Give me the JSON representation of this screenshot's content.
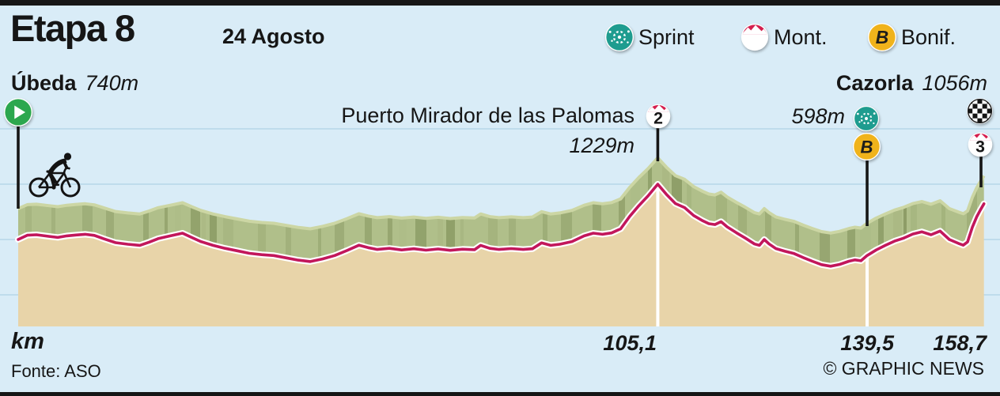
{
  "header": {
    "title": "Etapa 8",
    "date": "24 Agosto"
  },
  "legend": {
    "sprint": "Sprint",
    "mont": "Mont.",
    "bonif": "Bonif."
  },
  "start": {
    "name": "Úbeda",
    "elev": "740m"
  },
  "finish": {
    "name": "Cazorla",
    "elev": "1056m"
  },
  "climb": {
    "name": "Puerto Mirador de las Palomas",
    "elev": "1229m",
    "category": "2"
  },
  "sprint_point": {
    "elev": "598m",
    "bonus_letter": "B"
  },
  "finish_point": {
    "category": "3"
  },
  "axis": {
    "label": "km",
    "tick1": "105,1",
    "tick2": "139,5",
    "tick3": "158,7"
  },
  "footer": {
    "source": "Fonte: ASO",
    "credit": "© GRAPHIC NEWS"
  },
  "chart_data": {
    "type": "area",
    "title": "Etapa 8 — elevation profile",
    "xlabel": "km",
    "x_range": [
      0,
      158.7
    ],
    "x_ticks": [
      105.1,
      139.5,
      158.7
    ],
    "elevation_range_m": [
      500,
      1229
    ],
    "grid": true,
    "colors": {
      "background": "#d9ecf7",
      "gridline": "#bfdcec",
      "road_line": "#c2175b",
      "road_halo": "#ffffff",
      "terrain_fill": "#e8d4a9",
      "band_fill": "#b0bf8a",
      "band_highlight": "#ccd6a4",
      "band_shade": "#46581f",
      "stick": "#161616",
      "accent_teal": "#1e9c8f",
      "accent_yellow": "#f0b31b",
      "accent_red": "#d41f4e",
      "accent_green": "#2ca74e"
    },
    "markers": [
      {
        "km": 0,
        "label": "Úbeda",
        "elev_m": 740,
        "type": "start"
      },
      {
        "km": 105.1,
        "label": "Puerto Mirador de las Palomas",
        "elev_m": 1229,
        "type": "climb-cat-2"
      },
      {
        "km": 139.5,
        "label": "Sprint / Bonificación",
        "elev_m": 598,
        "type": "sprint-bonif"
      },
      {
        "km": 158.7,
        "label": "Cazorla",
        "elev_m": 1056,
        "type": "finish-cat-3"
      }
    ],
    "vertical_lines": [
      {
        "km": 105.1,
        "elev_m": 1229
      },
      {
        "km": 139.5,
        "elev_m": 598
      }
    ],
    "points_km_elev": [
      [
        0,
        740
      ],
      [
        1.5,
        778
      ],
      [
        3,
        782
      ],
      [
        5,
        768
      ],
      [
        6.5,
        758
      ],
      [
        8,
        772
      ],
      [
        9.5,
        780
      ],
      [
        11,
        786
      ],
      [
        12.5,
        776
      ],
      [
        14,
        748
      ],
      [
        16,
        712
      ],
      [
        18,
        698
      ],
      [
        20,
        688
      ],
      [
        21.5,
        716
      ],
      [
        23,
        748
      ],
      [
        25,
        772
      ],
      [
        27,
        796
      ],
      [
        28.5,
        758
      ],
      [
        30,
        722
      ],
      [
        32,
        688
      ],
      [
        34,
        662
      ],
      [
        36,
        640
      ],
      [
        38,
        618
      ],
      [
        40,
        606
      ],
      [
        42,
        598
      ],
      [
        44,
        578
      ],
      [
        46,
        558
      ],
      [
        48,
        545
      ],
      [
        50,
        568
      ],
      [
        52,
        598
      ],
      [
        54,
        642
      ],
      [
        56,
        690
      ],
      [
        57.5,
        668
      ],
      [
        59,
        652
      ],
      [
        61,
        662
      ],
      [
        63,
        648
      ],
      [
        65,
        658
      ],
      [
        67,
        646
      ],
      [
        69,
        656
      ],
      [
        71,
        644
      ],
      [
        73,
        654
      ],
      [
        75,
        650
      ],
      [
        76,
        688
      ],
      [
        77.5,
        662
      ],
      [
        79,
        652
      ],
      [
        81,
        660
      ],
      [
        83,
        652
      ],
      [
        84.5,
        658
      ],
      [
        86,
        710
      ],
      [
        87.5,
        688
      ],
      [
        89,
        698
      ],
      [
        91,
        722
      ],
      [
        93,
        772
      ],
      [
        94.5,
        796
      ],
      [
        96,
        786
      ],
      [
        97.5,
        798
      ],
      [
        99,
        834
      ],
      [
        100.5,
        945
      ],
      [
        102,
        1040
      ],
      [
        103.5,
        1125
      ],
      [
        105.1,
        1229
      ],
      [
        106.5,
        1140
      ],
      [
        108,
        1058
      ],
      [
        109.5,
        1022
      ],
      [
        111,
        952
      ],
      [
        112.5,
        905
      ],
      [
        113.5,
        880
      ],
      [
        114.5,
        872
      ],
      [
        115.5,
        898
      ],
      [
        116.5,
        852
      ],
      [
        118,
        800
      ],
      [
        119.5,
        752
      ],
      [
        121,
        700
      ],
      [
        121.8,
        688
      ],
      [
        122.6,
        740
      ],
      [
        123.4,
        700
      ],
      [
        124.5,
        660
      ],
      [
        126,
        636
      ],
      [
        127.5,
        616
      ],
      [
        129,
        580
      ],
      [
        130.5,
        548
      ],
      [
        132,
        518
      ],
      [
        133.5,
        504
      ],
      [
        135,
        520
      ],
      [
        136.5,
        548
      ],
      [
        137.5,
        560
      ],
      [
        138.5,
        552
      ],
      [
        139.5,
        598
      ],
      [
        141,
        648
      ],
      [
        142.5,
        688
      ],
      [
        144,
        725
      ],
      [
        145.5,
        752
      ],
      [
        147,
        788
      ],
      [
        148.5,
        808
      ],
      [
        150,
        782
      ],
      [
        151.5,
        815
      ],
      [
        153,
        740
      ],
      [
        154.5,
        706
      ],
      [
        155.3,
        690
      ],
      [
        156,
        718
      ],
      [
        156.8,
        850
      ],
      [
        157.5,
        940
      ],
      [
        158.1,
        1000
      ],
      [
        158.7,
        1056
      ]
    ]
  }
}
